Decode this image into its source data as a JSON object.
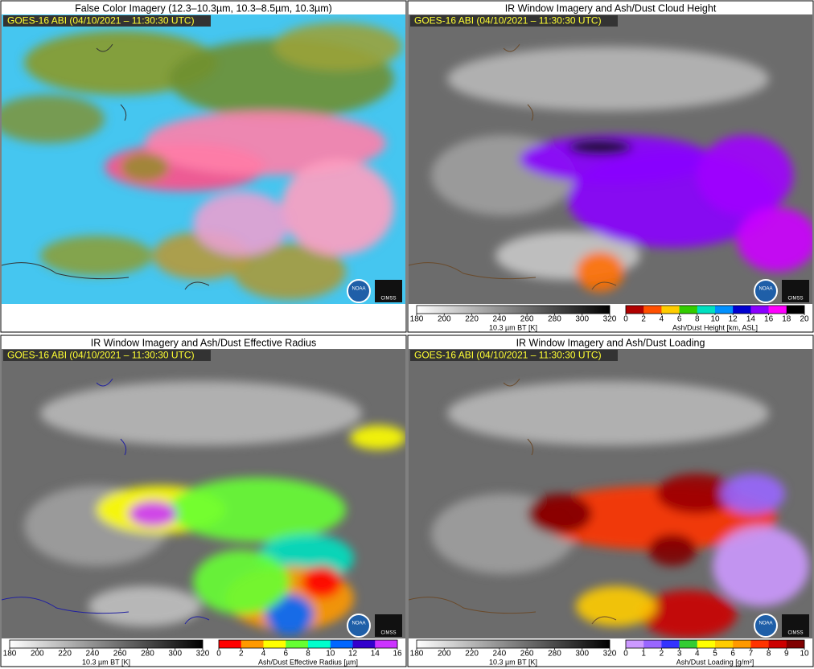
{
  "panels": [
    {
      "title": "False Color Imagery (12.3–10.3µm, 10.3–8.5µm, 10.3µm)",
      "timestamp": "GOES-16 ABI (04/10/2021 – 11:30:30 UTC)",
      "logo_noaa": "NOAA",
      "logo_cimss": "CIMSS"
    },
    {
      "title": "IR Window Imagery and Ash/Dust Cloud Height",
      "timestamp": "GOES-16 ABI (04/10/2021 – 11:30:30 UTC)",
      "logo_noaa": "NOAA",
      "logo_cimss": "CIMSS",
      "colorbars": [
        {
          "label": "10.3 µm BT [K]",
          "ticks": [
            180,
            200,
            220,
            240,
            260,
            280,
            300,
            320
          ]
        },
        {
          "label": "Ash/Dust Height [km, ASL]",
          "ticks": [
            0,
            2,
            4,
            6,
            8,
            10,
            12,
            14,
            16,
            18,
            20
          ],
          "colors": [
            "#b00000",
            "#ff5000",
            "#ffcc00",
            "#33cc00",
            "#00e0c0",
            "#0090ff",
            "#0000d0",
            "#8a00ff",
            "#ff00ff",
            "#000000"
          ]
        }
      ]
    },
    {
      "title": "IR Window Imagery and Ash/Dust Effective Radius",
      "timestamp": "GOES-16 ABI (04/10/2021 – 11:30:30 UTC)",
      "logo_noaa": "NOAA",
      "logo_cimss": "CIMSS",
      "colorbars": [
        {
          "label": "10.3 µm BT [K]",
          "ticks": [
            180,
            200,
            220,
            240,
            260,
            280,
            300,
            320
          ]
        },
        {
          "label": "Ash/Dust Effective Radius [µm]",
          "ticks": [
            0,
            2,
            4,
            6,
            8,
            10,
            12,
            14,
            16
          ],
          "colors": [
            "#ff0000",
            "#ff9900",
            "#ffff00",
            "#66ff33",
            "#00ffcc",
            "#0066ff",
            "#3300cc",
            "#cc33ff"
          ]
        }
      ]
    },
    {
      "title": "IR Window Imagery and Ash/Dust Loading",
      "timestamp": "GOES-16 ABI (04/10/2021 – 11:30:30 UTC)",
      "logo_noaa": "NOAA",
      "logo_cimss": "CIMSS",
      "colorbars": [
        {
          "label": "10.3 µm BT [K]",
          "ticks": [
            180,
            200,
            220,
            240,
            260,
            280,
            300,
            320
          ]
        },
        {
          "label": "Ash/Dust Loading [g/m²]",
          "ticks": [
            0,
            1,
            2,
            3,
            4,
            5,
            6,
            7,
            8,
            9,
            10
          ],
          "colors": [
            "#cc99ff",
            "#9966ff",
            "#3333ff",
            "#33cc33",
            "#ffff00",
            "#ffcc00",
            "#ff9900",
            "#ff3300",
            "#cc0000",
            "#800000"
          ]
        }
      ]
    }
  ]
}
